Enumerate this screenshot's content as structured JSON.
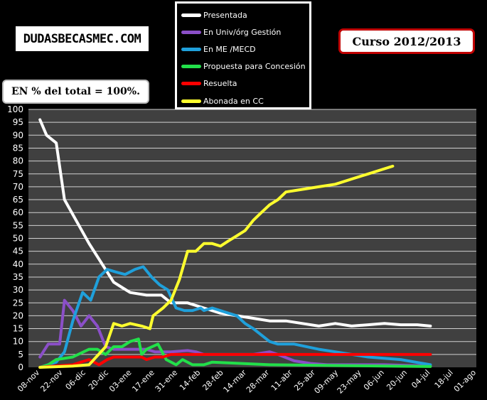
{
  "logo_text": "DUDASBECASMEC.COM",
  "course_label": "Curso 2012/2013",
  "note_label": "EN % del total = 100%.",
  "colors": {
    "plot_bg": "#404040",
    "grid": "#d0d0d0",
    "axis_text": "#ffffff"
  },
  "chart_data": {
    "type": "line",
    "title": "",
    "xlabel": "",
    "ylabel": "",
    "ylim": [
      0,
      100
    ],
    "yticks": [
      0,
      5,
      10,
      15,
      20,
      25,
      30,
      35,
      40,
      45,
      50,
      55,
      60,
      65,
      70,
      75,
      80,
      85,
      90,
      95,
      100
    ],
    "xticks": [
      "08-nov",
      "22-nov",
      "06-dic",
      "20-dic",
      "03-ene",
      "17-ene",
      "31-ene",
      "14-feb",
      "28-feb",
      "14-mar",
      "28-mar",
      "11-abr",
      "25-abr",
      "09-may",
      "23-may",
      "06-jun",
      "20-jun",
      "04-jul",
      "18-jul",
      "01-ago"
    ],
    "grid": true,
    "legend_position": "top-center",
    "series": [
      {
        "name": "Presentada",
        "color": "#ffffff",
        "points": [
          [
            0,
            96
          ],
          [
            0.29,
            90
          ],
          [
            0.71,
            87
          ],
          [
            1.07,
            65
          ],
          [
            2.14,
            48
          ],
          [
            3.21,
            33
          ],
          [
            3.57,
            31
          ],
          [
            3.93,
            29
          ],
          [
            4.64,
            28
          ],
          [
            5.29,
            28
          ],
          [
            5.71,
            25
          ],
          [
            6.43,
            25
          ],
          [
            7.14,
            23
          ],
          [
            7.86,
            21
          ],
          [
            8.57,
            20
          ],
          [
            9.29,
            19
          ],
          [
            10,
            18
          ],
          [
            10.71,
            18
          ],
          [
            11.43,
            17
          ],
          [
            12.14,
            16
          ],
          [
            12.86,
            17
          ],
          [
            13.57,
            16
          ],
          [
            14.29,
            16.5
          ],
          [
            15,
            17
          ],
          [
            15.71,
            16.5
          ],
          [
            16.43,
            16.5
          ],
          [
            17,
            16
          ]
        ]
      },
      {
        "name": "En Univ/órg Gestión",
        "color": "#8b4fc8",
        "points": [
          [
            0,
            4
          ],
          [
            0.36,
            9
          ],
          [
            0.64,
            9
          ],
          [
            0.86,
            9
          ],
          [
            1.07,
            26
          ],
          [
            1.43,
            22
          ],
          [
            1.79,
            16
          ],
          [
            2.14,
            20
          ],
          [
            2.5,
            16
          ],
          [
            2.86,
            8
          ],
          [
            3.21,
            7
          ],
          [
            3.57,
            7
          ],
          [
            4.29,
            7
          ],
          [
            4.64,
            7
          ],
          [
            5,
            6
          ],
          [
            5.71,
            6
          ],
          [
            6.43,
            6.5
          ],
          [
            6.79,
            6
          ],
          [
            7.14,
            5
          ],
          [
            8.57,
            5
          ],
          [
            9.29,
            5
          ],
          [
            10,
            6
          ],
          [
            10.36,
            5
          ],
          [
            11.07,
            2.5
          ],
          [
            11.79,
            1.5
          ],
          [
            12.5,
            1
          ],
          [
            13.21,
            1
          ],
          [
            15,
            1
          ],
          [
            17,
            0.5
          ]
        ]
      },
      {
        "name": "En ME /MECD",
        "color": "#1fa0db",
        "points": [
          [
            0,
            0
          ],
          [
            0.71,
            2
          ],
          [
            1.07,
            6
          ],
          [
            1.43,
            18
          ],
          [
            1.86,
            29
          ],
          [
            2.21,
            26
          ],
          [
            2.57,
            35
          ],
          [
            2.93,
            38
          ],
          [
            3.29,
            37
          ],
          [
            3.71,
            36
          ],
          [
            4.14,
            38
          ],
          [
            4.5,
            39
          ],
          [
            4.86,
            35
          ],
          [
            5.21,
            32
          ],
          [
            5.57,
            30
          ],
          [
            5.93,
            23
          ],
          [
            6.29,
            22
          ],
          [
            6.64,
            22
          ],
          [
            7,
            23
          ],
          [
            7.14,
            22
          ],
          [
            7.5,
            23
          ],
          [
            8.21,
            21
          ],
          [
            8.57,
            20
          ],
          [
            8.93,
            17
          ],
          [
            9.29,
            15
          ],
          [
            10,
            10
          ],
          [
            10.36,
            9
          ],
          [
            11.07,
            9
          ],
          [
            12.14,
            7
          ],
          [
            12.86,
            6
          ],
          [
            14.29,
            4
          ],
          [
            15.71,
            3
          ],
          [
            17,
            1
          ]
        ]
      },
      {
        "name": "Propuesta para  Concesión",
        "color": "#22e04a",
        "points": [
          [
            0,
            0
          ],
          [
            0.36,
            1
          ],
          [
            0.71,
            3
          ],
          [
            1.43,
            4
          ],
          [
            2.14,
            7
          ],
          [
            2.5,
            7
          ],
          [
            2.86,
            5
          ],
          [
            3.21,
            8
          ],
          [
            3.57,
            8
          ],
          [
            3.93,
            10
          ],
          [
            4.29,
            11
          ],
          [
            4.43,
            5
          ],
          [
            4.64,
            7
          ],
          [
            5.14,
            9
          ],
          [
            5.5,
            3
          ],
          [
            5.93,
            1
          ],
          [
            6.21,
            3
          ],
          [
            6.64,
            1
          ],
          [
            7.14,
            1
          ],
          [
            7.5,
            2
          ],
          [
            10,
            1
          ],
          [
            17,
            0.3
          ]
        ]
      },
      {
        "name": "Resuelta",
        "color": "#ff0000",
        "points": [
          [
            0,
            0
          ],
          [
            0.36,
            0.3
          ],
          [
            1.43,
            1
          ],
          [
            2.14,
            3
          ],
          [
            2.57,
            1
          ],
          [
            2.93,
            3
          ],
          [
            3.21,
            4
          ],
          [
            3.93,
            4
          ],
          [
            4.43,
            4
          ],
          [
            4.64,
            3
          ],
          [
            5,
            4
          ],
          [
            5.36,
            4
          ],
          [
            5.71,
            5
          ],
          [
            6.43,
            5
          ],
          [
            8.57,
            5
          ],
          [
            9.29,
            5
          ],
          [
            10,
            5
          ],
          [
            17,
            5
          ]
        ]
      },
      {
        "name": "Abonada en CC",
        "color": "#ffff2e",
        "points": [
          [
            0,
            0
          ],
          [
            1.43,
            0.5
          ],
          [
            2.14,
            1
          ],
          [
            2.86,
            8
          ],
          [
            3.21,
            17
          ],
          [
            3.57,
            16
          ],
          [
            3.93,
            17
          ],
          [
            4.43,
            16
          ],
          [
            4.79,
            15
          ],
          [
            4.93,
            20
          ],
          [
            5.36,
            23
          ],
          [
            5.71,
            26
          ],
          [
            6.07,
            34
          ],
          [
            6.43,
            45
          ],
          [
            6.79,
            45
          ],
          [
            7.14,
            48
          ],
          [
            7.5,
            48
          ],
          [
            7.86,
            47
          ],
          [
            8.21,
            49
          ],
          [
            8.57,
            51
          ],
          [
            8.93,
            53
          ],
          [
            9.29,
            57
          ],
          [
            9.64,
            60
          ],
          [
            10,
            63
          ],
          [
            10.36,
            65
          ],
          [
            10.71,
            68
          ],
          [
            11.43,
            69
          ],
          [
            12.14,
            70
          ],
          [
            12.86,
            71
          ],
          [
            13.57,
            73
          ],
          [
            14.29,
            75
          ],
          [
            15,
            77
          ],
          [
            15.36,
            78
          ]
        ]
      }
    ]
  }
}
